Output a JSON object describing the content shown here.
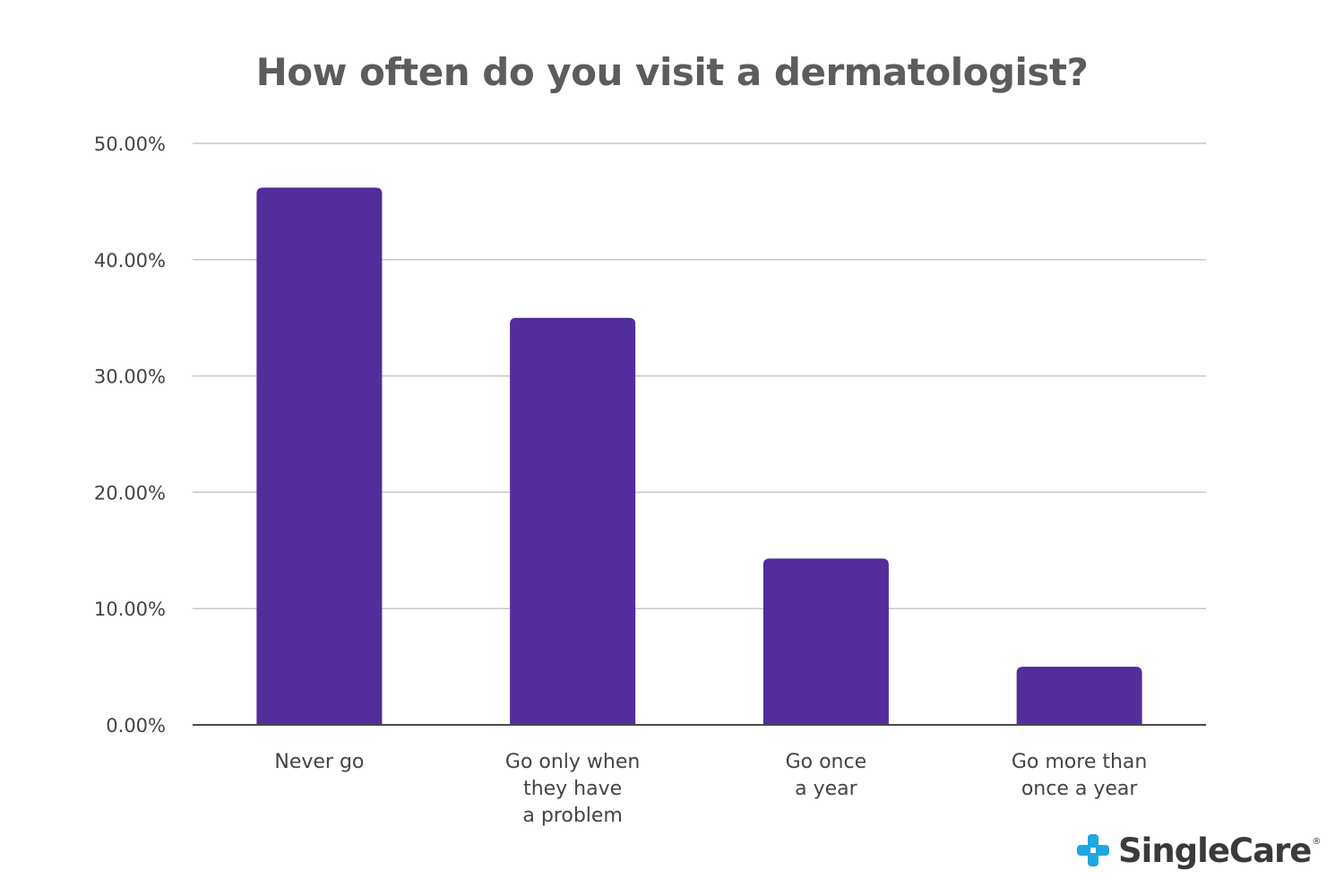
{
  "chart_data": {
    "type": "bar",
    "title": "How often do you visit a dermatologist?",
    "xlabel": "",
    "ylabel": "",
    "categories": [
      [
        "Never go"
      ],
      [
        "Go only when",
        "they have",
        "a problem"
      ],
      [
        "Go once",
        "a year"
      ],
      [
        "Go more than",
        "once a year"
      ]
    ],
    "values": [
      46.2,
      35.0,
      14.3,
      5.0
    ],
    "ylim": [
      0,
      50
    ],
    "yticks": [
      0,
      10,
      20,
      30,
      40,
      50
    ],
    "ytick_labels": [
      "0.00%",
      "10.00%",
      "20.00%",
      "30.00%",
      "40.00%",
      "50.00%"
    ],
    "grid": true,
    "bar_color": "#522d9b",
    "grid_color": "#c8c8c8",
    "axis_color": "#4a4a4a",
    "label_color": "#444444"
  },
  "logo": {
    "text": "SingleCare",
    "registered": "®",
    "icon": "cross-sparkle-icon",
    "icon_color": "#1ea7e0"
  }
}
